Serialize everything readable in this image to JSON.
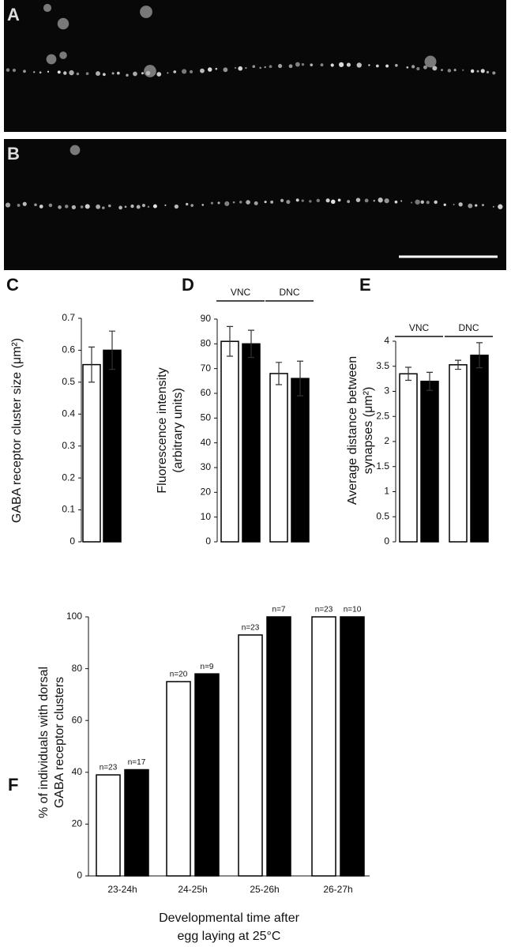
{
  "images": [
    {
      "label": "A"
    },
    {
      "label": "B"
    }
  ],
  "chart_data": [
    {
      "type": "bar",
      "label": "C",
      "ylabel": [
        "GABA receptor cluster size (μm²)"
      ],
      "ylim": [
        0,
        0.7
      ],
      "yticks": [
        0,
        0.1,
        0.2,
        0.3,
        0.4,
        0.5,
        0.6,
        0.7
      ],
      "series": [
        {
          "color": "#ffffff",
          "values": [
            0.555
          ],
          "errors": [
            0.055
          ]
        },
        {
          "color": "#000000",
          "values": [
            0.6
          ],
          "errors": [
            0.06
          ]
        }
      ]
    },
    {
      "type": "bar",
      "label": "D",
      "ylabel": [
        "Fluorescence intensity",
        "(arbitrary units)"
      ],
      "groups": [
        "VNC",
        "DNC"
      ],
      "ylim": [
        0,
        90
      ],
      "yticks": [
        0,
        10,
        20,
        30,
        40,
        50,
        60,
        70,
        80,
        90
      ],
      "series": [
        {
          "color": "#ffffff",
          "values": [
            81,
            68
          ],
          "errors": [
            6,
            4.5
          ]
        },
        {
          "color": "#000000",
          "values": [
            80,
            66
          ],
          "errors": [
            5.5,
            7
          ]
        }
      ]
    },
    {
      "type": "bar",
      "label": "E",
      "ylabel": [
        "Average distance between",
        "synapses (μm²)"
      ],
      "groups": [
        "VNC",
        "DNC"
      ],
      "ylim": [
        0,
        4
      ],
      "yticks": [
        0,
        0.5,
        1,
        1.5,
        2,
        2.5,
        3,
        3.5,
        4
      ],
      "series": [
        {
          "color": "#ffffff",
          "values": [
            3.35,
            3.53
          ],
          "errors": [
            0.13,
            0.09
          ]
        },
        {
          "color": "#000000",
          "values": [
            3.2,
            3.72
          ],
          "errors": [
            0.18,
            0.25
          ]
        }
      ]
    },
    {
      "type": "bar",
      "label": "F",
      "ylabel": [
        "% of individuals with dorsal",
        "GABA receptor clusters"
      ],
      "xlabel": [
        "Developmental time after",
        "egg laying at 25°C"
      ],
      "categories": [
        "23-24h",
        "24-25h",
        "25-26h",
        "26-27h"
      ],
      "ylim": [
        0,
        100
      ],
      "yticks": [
        0,
        20,
        40,
        60,
        80,
        100
      ],
      "series": [
        {
          "color": "#ffffff",
          "values": [
            39,
            75,
            93,
            100
          ],
          "sample_sizes": [
            "n=23",
            "n=20",
            "n=23",
            "n=23"
          ]
        },
        {
          "color": "#000000",
          "values": [
            41,
            78,
            100,
            100
          ],
          "sample_sizes": [
            "n=17",
            "n=9",
            "n=7",
            "n=10"
          ]
        }
      ]
    }
  ]
}
